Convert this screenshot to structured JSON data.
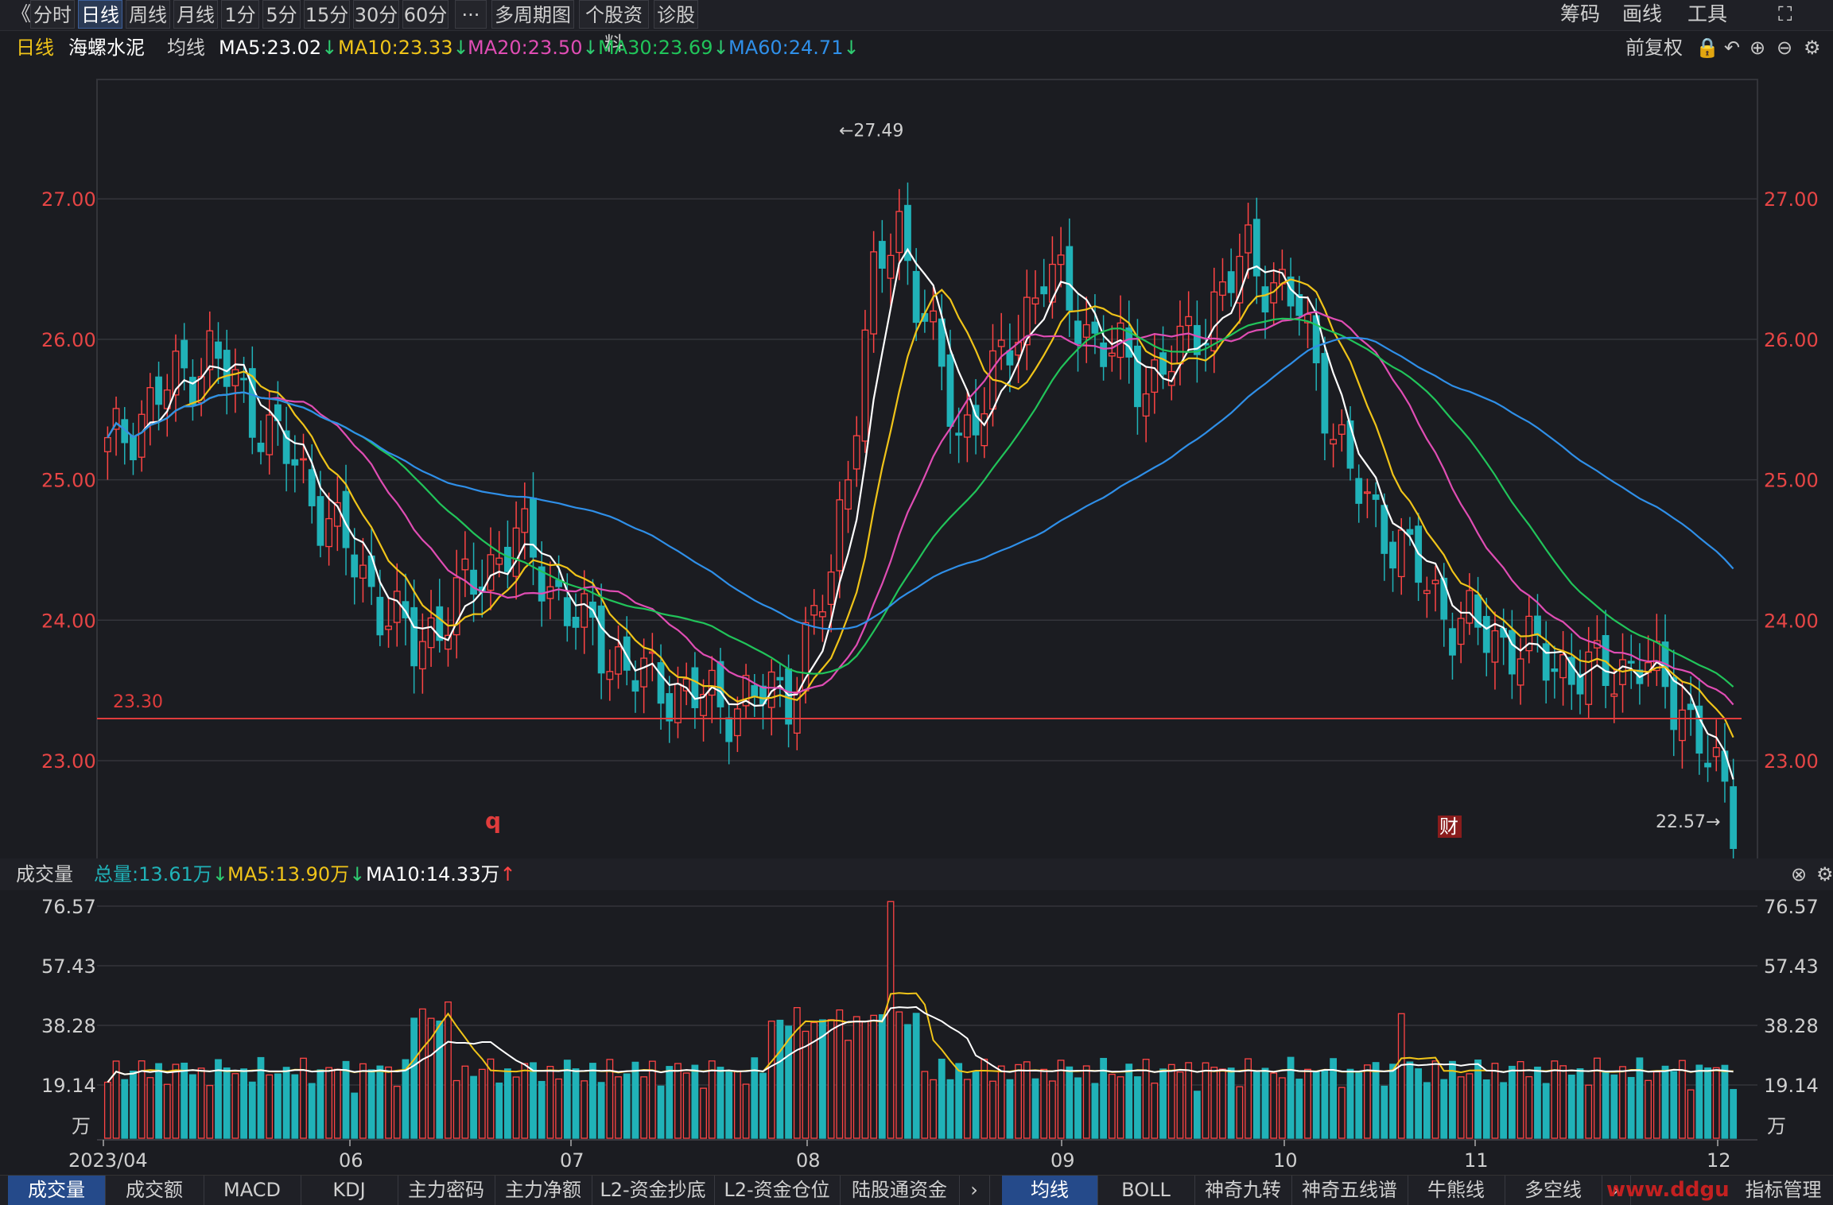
{
  "toolbar": {
    "back_icon": "《",
    "tabs": [
      "分时",
      "日线",
      "周线",
      "月线",
      "1分",
      "5分",
      "15分",
      "30分",
      "60分",
      "···",
      "多周期图",
      "个股资料",
      "诊股"
    ],
    "active_tab": "日线",
    "right": [
      "筹码",
      "画线",
      "工具"
    ]
  },
  "info": {
    "period": "日线",
    "stock_name": "海螺水泥",
    "indicator": "均线",
    "ma5": "MA5:23.02",
    "ma10": "MA10:23.33",
    "ma20": "MA20:23.50",
    "ma30": "MA30:23.69",
    "ma60": "MA60:24.71",
    "adjust": "前复权"
  },
  "volume_info": {
    "title": "成交量",
    "total": "总量:13.61万",
    "ma5": "MA5:13.90万",
    "ma10": "MA10:14.33万"
  },
  "colors": {
    "up": "#ff4444",
    "down": "#20b2b8",
    "ma5": "#ffffff",
    "ma10": "#f0c419",
    "ma20": "#e04db4",
    "ma30": "#21c45a",
    "ma60": "#2f8fe8",
    "hline": "#e03c3c"
  },
  "chart_data": {
    "type": "candlestick",
    "ylim": [
      22.4,
      27.85
    ],
    "price_ticks": [
      "27.00",
      "26.00",
      "25.00",
      "24.00",
      "23.00"
    ],
    "hline_label": "23.30",
    "high_marker": "←27.49",
    "low_marker": "22.57→",
    "event_markers": [
      "q",
      "财"
    ],
    "x_labels": [
      "2023/04",
      "06",
      "07",
      "08",
      "09",
      "10",
      "11",
      "12"
    ],
    "volume_ticks": [
      "76.57",
      "57.43",
      "38.28",
      "19.14"
    ],
    "volume_unit": "万",
    "volume_ylim": [
      0,
      76.57
    ]
  },
  "bottom_tabs": [
    "成交量",
    "成交额",
    "MACD",
    "KDJ",
    "主力密码",
    "主力净额",
    "L2-资金抄底",
    "L2-资金仓位",
    "陆股通资金"
  ],
  "bottom_tabs2": [
    "均线",
    "BOLL",
    "神奇九转",
    "神奇五线谱",
    "牛熊线",
    "多空线"
  ],
  "bottom_right": "指标管理",
  "watermark": "www.ddgu"
}
